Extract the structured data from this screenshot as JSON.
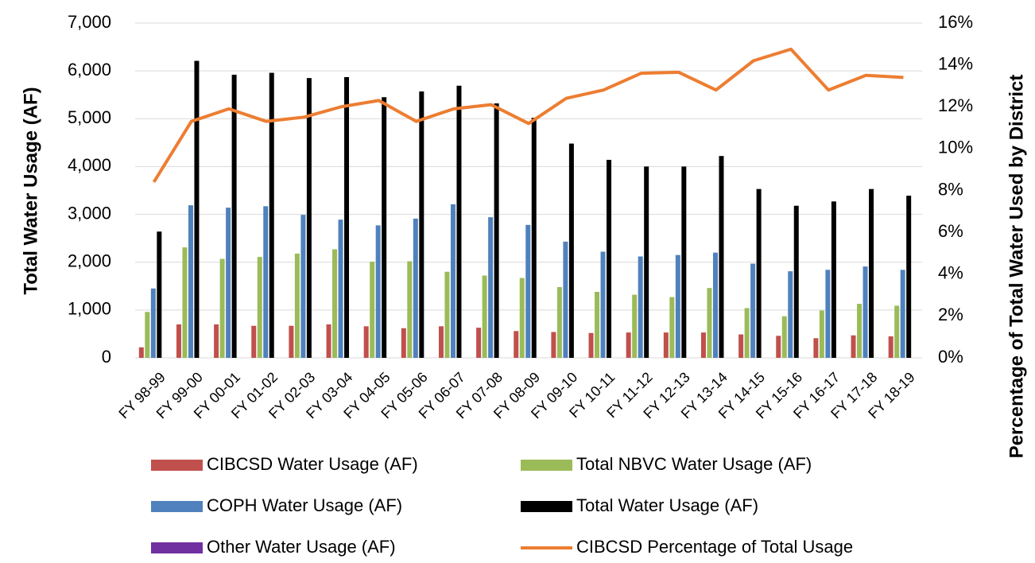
{
  "chart_data": {
    "type": "bar",
    "ylabel": "Total Water Usage (AF)",
    "y2label": "Percentage of Total Water Used by District",
    "categories": [
      "FY 98-99",
      "FY 99-00",
      "FY 00-01",
      "FY 01-02",
      "FY 02-03",
      "FY 03-04",
      "FY 04-05",
      "FY 05-06",
      "FY 06-07",
      "FY 07-08",
      "FY 08-09",
      "FY 09-10",
      "FY 10-11",
      "FY 11-12",
      "FY 12-13",
      "FY 13-14",
      "FY 14-15",
      "FY 15-16",
      "FY 16-17",
      "FY 17-18",
      "FY 18-19"
    ],
    "series": [
      {
        "name": "CIBCSD Water Usage (AF)",
        "color": "#c0504d",
        "values": [
          220,
          700,
          700,
          670,
          670,
          700,
          660,
          620,
          660,
          630,
          560,
          540,
          520,
          530,
          530,
          530,
          490,
          460,
          410,
          470,
          450
        ]
      },
      {
        "name": "Total NBVC Water Usage (AF)",
        "color": "#9bbb59",
        "values": [
          960,
          2310,
          2070,
          2110,
          2180,
          2270,
          2010,
          2020,
          1800,
          1720,
          1670,
          1480,
          1380,
          1320,
          1270,
          1460,
          1040,
          870,
          990,
          1130,
          1090
        ]
      },
      {
        "name": "COPH Water Usage (AF)",
        "color": "#4f81bd",
        "values": [
          1450,
          3190,
          3140,
          3170,
          2990,
          2890,
          2770,
          2910,
          3210,
          2940,
          2780,
          2430,
          2220,
          2120,
          2150,
          2200,
          1970,
          1810,
          1840,
          1910,
          1840
        ]
      },
      {
        "name": "Total Water Usage (AF)",
        "color": "#000000",
        "values": [
          2640,
          6210,
          5920,
          5960,
          5850,
          5870,
          5450,
          5570,
          5690,
          5320,
          5020,
          4480,
          4140,
          4000,
          4000,
          4220,
          3530,
          3180,
          3270,
          3530,
          3390
        ]
      },
      {
        "name": "Other Water Usage (AF)",
        "color": "#7030a0",
        "values": [
          0,
          0,
          0,
          0,
          0,
          0,
          0,
          0,
          0,
          0,
          0,
          0,
          0,
          0,
          0,
          0,
          0,
          0,
          0,
          0,
          0
        ]
      },
      {
        "name": "CIBCSD Percentage of Total Usage",
        "color": "#ed7d31",
        "type": "line",
        "axis": "y2",
        "values": [
          8.4,
          11.3,
          11.9,
          11.3,
          11.5,
          12.0,
          12.3,
          11.3,
          11.9,
          12.1,
          11.2,
          12.4,
          12.8,
          13.6,
          13.65,
          12.8,
          14.2,
          14.75,
          12.8,
          13.5,
          13.4
        ]
      }
    ],
    "ylim": [
      0,
      7000
    ],
    "yticks": [
      0,
      {
        "value": 1000,
        "label": "1,000"
      },
      {
        "value": 2000,
        "label": "2,000"
      },
      {
        "value": 3000,
        "label": "3,000"
      },
      {
        "value": 4000,
        "label": "4,000"
      },
      {
        "value": 5000,
        "label": "5,000"
      },
      {
        "value": 6000,
        "label": "6,000"
      },
      {
        "value": 7000,
        "label": "7,000"
      }
    ],
    "y2lim": [
      0,
      16
    ],
    "y2ticks": [
      {
        "value": 0,
        "label": "0%"
      },
      {
        "value": 2,
        "label": "2%"
      },
      {
        "value": 4,
        "label": "4%"
      },
      {
        "value": 6,
        "label": "6%"
      },
      {
        "value": 8,
        "label": "8%"
      },
      {
        "value": 10,
        "label": "10%"
      },
      {
        "value": 12,
        "label": "12%"
      },
      {
        "value": 14,
        "label": "14%"
      },
      {
        "value": 16,
        "label": "16%"
      }
    ],
    "grid": true,
    "legend": "bottom"
  }
}
